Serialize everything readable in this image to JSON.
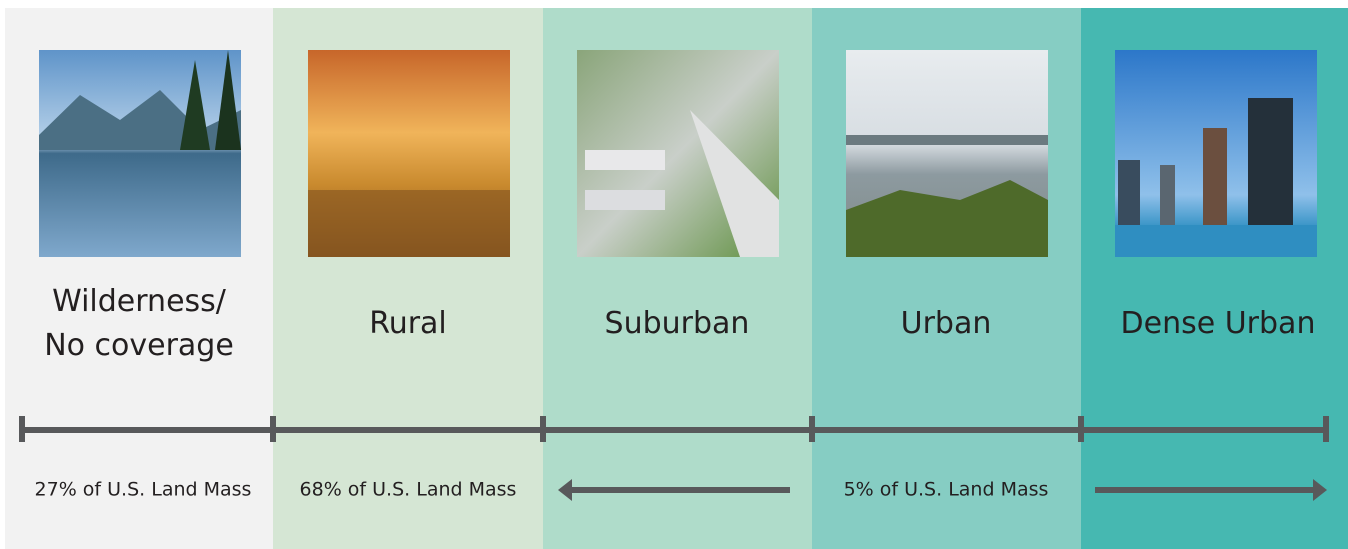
{
  "columns": [
    {
      "label": [
        "Wilderness/",
        "No coverage"
      ]
    },
    {
      "label": [
        "Rural"
      ]
    },
    {
      "label": [
        "Suburban"
      ]
    },
    {
      "label": [
        "Urban"
      ]
    },
    {
      "label": [
        "Dense Urban"
      ]
    }
  ],
  "land_mass": [
    "27% of U.S. Land Mass",
    "68% of U.S. Land Mass",
    "5% of U.S. Land Mass"
  ]
}
